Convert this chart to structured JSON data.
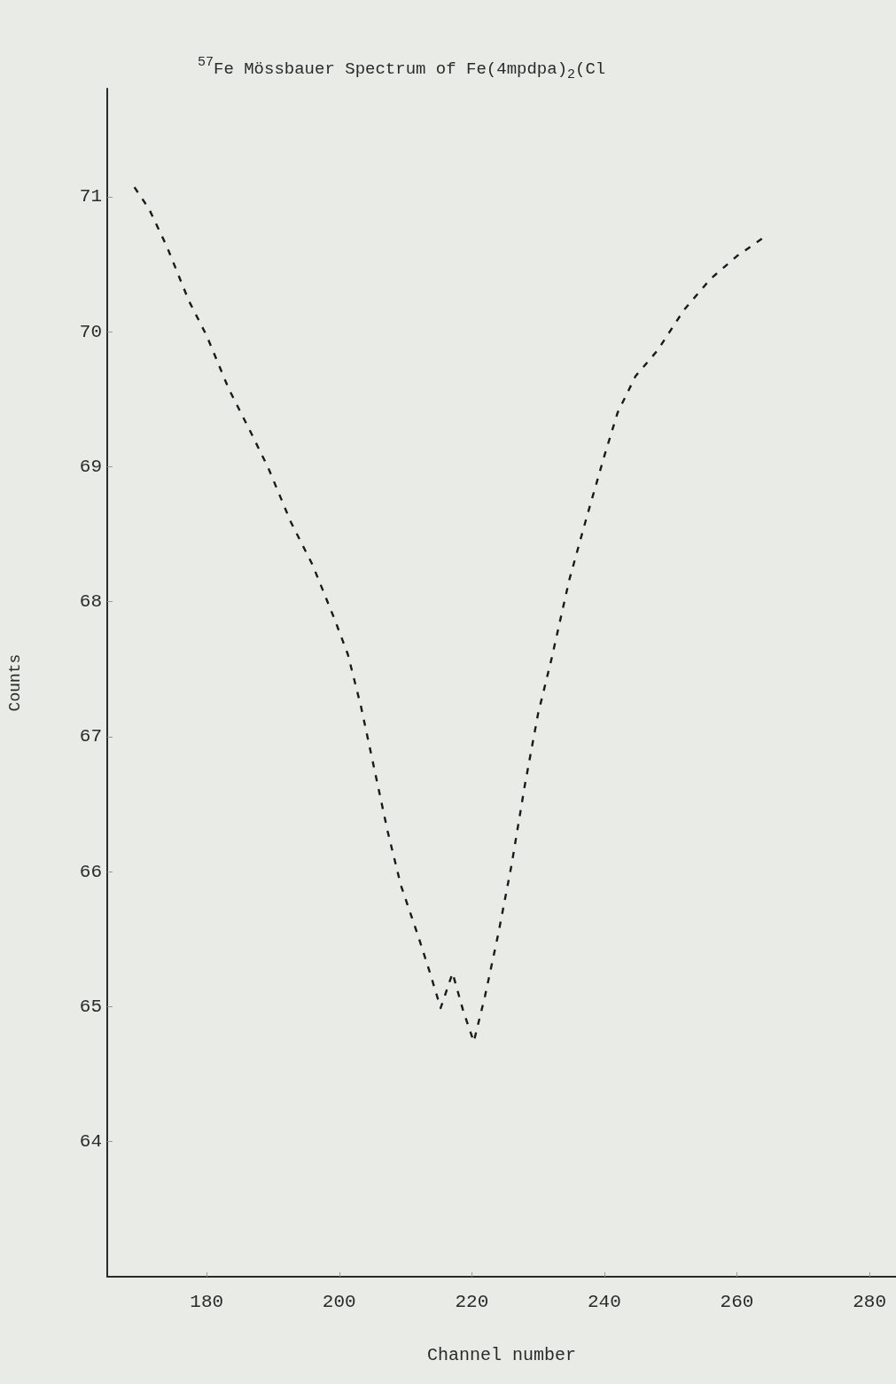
{
  "chart_data": {
    "type": "line",
    "title": "$^{57}$Fe Mössbauer Spectrum of Fe(4mpdpa)$_{2}$(Cl",
    "xlabel": "Channel number",
    "ylabel": "Counts",
    "x": [
      169.1,
      171.3,
      174,
      177.3,
      180,
      183.3,
      186.7,
      189.3,
      192.7,
      196,
      199.3,
      201.3,
      203.3,
      205.3,
      207.3,
      209.3,
      212,
      213.7,
      215.3,
      217.1,
      218.7,
      220.3,
      222,
      224,
      226,
      228,
      230,
      232,
      234.7,
      237.3,
      240,
      242,
      244.7,
      248,
      252,
      256,
      260,
      264.7
    ],
    "series": [
      {
        "color": "#1a1a1a",
        "values": [
          71.07,
          70.91,
          70.63,
          70.23,
          69.97,
          69.58,
          69.25,
          68.99,
          68.59,
          68.27,
          67.87,
          67.61,
          67.22,
          66.76,
          66.3,
          65.9,
          65.51,
          65.25,
          64.99,
          65.25,
          64.97,
          64.74,
          65.08,
          65.54,
          66.05,
          66.64,
          67.17,
          67.57,
          68.16,
          68.62,
          69.08,
          69.4,
          69.67,
          69.86,
          70.16,
          70.39,
          70.56,
          70.72
        ]
      }
    ],
    "xlim": [
      165,
      284
    ],
    "xticks": [
      180,
      200,
      220,
      240,
      260,
      280
    ],
    "ylim": [
      63,
      71.8
    ],
    "yticks": [
      64,
      65,
      66,
      67,
      68,
      69,
      70,
      71
    ],
    "grid": false,
    "marker": "none",
    "line_style": "dashed"
  }
}
